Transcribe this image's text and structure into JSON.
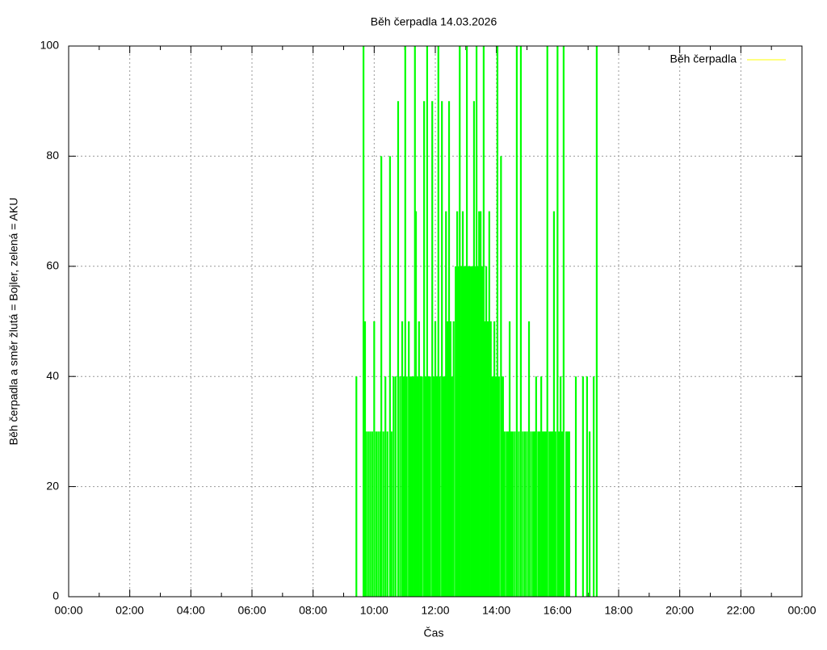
{
  "chart_data": {
    "type": "impulses",
    "title": "Běh čerpadla 14.03.2026",
    "xlabel": "Čas",
    "ylabel": "Běh čerpadla a směr žlutá = Bojler, zelená = AKU",
    "legend": "top-right",
    "legend_line_color": "#ffff00",
    "grid": true,
    "xlim": [
      0,
      1440
    ],
    "xticks": [
      {
        "value": 0,
        "label": "00:00"
      },
      {
        "value": 120,
        "label": "02:00"
      },
      {
        "value": 240,
        "label": "04:00"
      },
      {
        "value": 360,
        "label": "06:00"
      },
      {
        "value": 480,
        "label": "08:00"
      },
      {
        "value": 600,
        "label": "10:00"
      },
      {
        "value": 720,
        "label": "12:00"
      },
      {
        "value": 840,
        "label": "14:00"
      },
      {
        "value": 960,
        "label": "16:00"
      },
      {
        "value": 1080,
        "label": "18:00"
      },
      {
        "value": 1200,
        "label": "20:00"
      },
      {
        "value": 1320,
        "label": "22:00"
      },
      {
        "value": 1440,
        "label": "00:00"
      }
    ],
    "ylim": [
      0,
      100
    ],
    "yticks": [
      0,
      20,
      40,
      60,
      80,
      100
    ],
    "x": [
      565,
      579,
      582,
      584,
      588,
      592,
      596,
      600,
      604,
      608,
      612,
      614,
      618,
      622,
      626,
      631,
      634,
      638,
      642,
      647,
      651,
      655,
      658,
      661,
      664,
      668,
      671,
      674,
      677,
      680,
      682,
      685,
      688,
      691,
      694,
      698,
      701,
      704,
      707,
      710,
      714,
      717,
      720,
      723,
      726,
      729,
      733,
      736,
      739,
      741,
      744,
      747,
      750,
      753,
      756,
      760,
      763,
      766,
      768,
      771,
      774,
      777,
      779,
      782,
      785,
      788,
      791,
      793,
      796,
      798,
      801,
      804,
      806,
      809,
      812,
      815,
      818,
      820,
      823,
      826,
      829,
      831,
      834,
      836,
      839,
      842,
      845,
      849,
      851,
      853,
      856,
      860,
      863,
      866,
      869,
      872,
      876,
      880,
      884,
      888,
      892,
      896,
      900,
      904,
      908,
      912,
      915,
      918,
      922,
      925,
      928,
      931,
      934,
      937,
      940,
      944,
      947,
      950,
      953,
      956,
      960,
      963,
      966,
      969,
      972,
      977,
      980,
      983,
      996,
      1010,
      1018,
      1023,
      1031,
      1037
    ],
    "series": [
      {
        "name": "Běh čerpadla",
        "color": "#00ff00",
        "values": [
          40,
          100,
          50,
          30,
          30,
          30,
          30,
          50,
          30,
          30,
          30,
          80,
          30,
          40,
          30,
          80,
          30,
          40,
          40,
          90,
          40,
          50,
          40,
          100,
          40,
          50,
          40,
          40,
          40,
          100,
          70,
          40,
          50,
          40,
          40,
          90,
          40,
          100,
          40,
          40,
          90,
          40,
          50,
          40,
          100,
          40,
          90,
          40,
          40,
          70,
          50,
          90,
          50,
          40,
          50,
          60,
          70,
          60,
          100,
          60,
          70,
          60,
          60,
          100,
          60,
          60,
          60,
          60,
          90,
          60,
          100,
          60,
          70,
          70,
          60,
          100,
          50,
          60,
          50,
          70,
          50,
          40,
          40,
          50,
          40,
          100,
          40,
          80,
          40,
          40,
          30,
          30,
          30,
          50,
          30,
          30,
          30,
          100,
          30,
          100,
          30,
          30,
          30,
          50,
          30,
          30,
          30,
          40,
          30,
          30,
          40,
          30,
          30,
          30,
          100,
          30,
          30,
          30,
          70,
          30,
          100,
          30,
          40,
          30,
          100,
          30,
          30,
          30,
          40,
          40,
          40,
          30,
          40,
          100
        ]
      }
    ]
  }
}
